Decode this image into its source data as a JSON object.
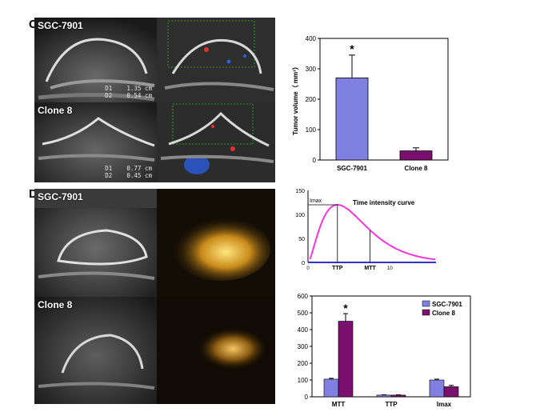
{
  "panels": {
    "c": {
      "letter": "C",
      "images": [
        {
          "label": "SGC-7901",
          "measurements": [
            "D1    1.35 cm",
            "D2    0.54 cm"
          ]
        },
        {
          "label": "Clone 8",
          "measurements": [
            "D1    0.77 cm",
            "D2    0.45 cm"
          ]
        }
      ]
    },
    "d": {
      "letter": "D",
      "images": [
        {
          "label": "SGC-7901"
        },
        {
          "label": "Clone 8"
        }
      ]
    }
  },
  "colors": {
    "sgc": "#8080e0",
    "clone": "#7a0f6e",
    "curve": "#ff33dd",
    "baseline": "#3333cc"
  },
  "chart_data": [
    {
      "type": "bar",
      "categories": [
        "SGC-7901",
        "Clone 8"
      ],
      "values": [
        270,
        30
      ],
      "errors": [
        75,
        10
      ],
      "ylabel": "Tumor volume（ mm³）",
      "ylim": [
        0,
        400
      ],
      "yticks": [
        0,
        100,
        200,
        300,
        400
      ],
      "annotations": [
        "*"
      ],
      "significant": [
        true,
        false
      ]
    },
    {
      "type": "line",
      "title": "Time intensity curve",
      "ylim": [
        0,
        150
      ],
      "yticks": [
        0,
        50,
        100,
        150
      ],
      "xticks": [
        "0",
        "10"
      ],
      "labels": {
        "imax": "Imax",
        "ttp": "TTP",
        "mtt": "MTT"
      }
    },
    {
      "type": "bar",
      "categories": [
        "MTT",
        "TTP",
        "Imax"
      ],
      "series": [
        {
          "name": "SGC-7901",
          "values": [
            105,
            10,
            100
          ],
          "errors": [
            5,
            2,
            5
          ]
        },
        {
          "name": "Clone 8",
          "values": [
            450,
            10,
            60
          ],
          "errors": [
            45,
            2,
            8
          ]
        }
      ],
      "ylim": [
        0,
        600
      ],
      "yticks": [
        0,
        100,
        200,
        300,
        400,
        500,
        600
      ],
      "annotations": [
        "*"
      ],
      "legend_position": "top-right"
    }
  ]
}
